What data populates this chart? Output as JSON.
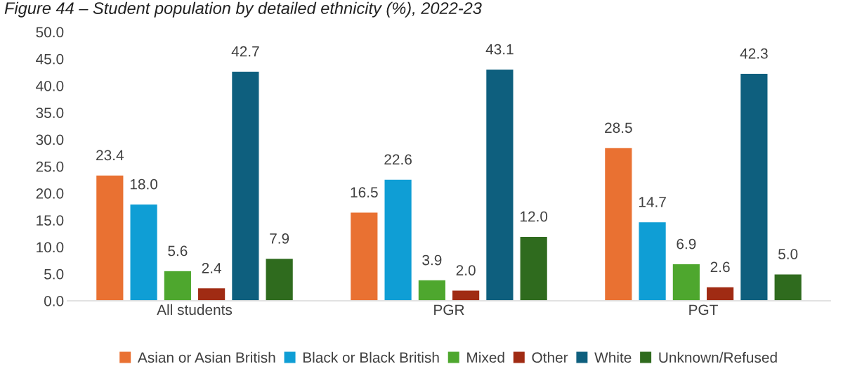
{
  "chart_data": {
    "type": "bar",
    "title": "Figure 44 – Student population by detailed ethnicity (%), 2022-23",
    "categories": [
      "All students",
      "PGR",
      "PGT"
    ],
    "series": [
      {
        "name": "Asian or Asian British",
        "color": "#e97132",
        "values": [
          23.4,
          16.5,
          28.5
        ],
        "value_labels": [
          "23.4",
          "16.5",
          "28.5"
        ]
      },
      {
        "name": "Black or Black British",
        "color": "#0f9ed5",
        "values": [
          18.0,
          22.6,
          14.7
        ],
        "value_labels": [
          "18.0",
          "22.6",
          "14.7"
        ]
      },
      {
        "name": "Mixed",
        "color": "#4ea72e",
        "values": [
          5.6,
          3.9,
          6.9
        ],
        "value_labels": [
          "5.6",
          "3.9",
          "6.9"
        ]
      },
      {
        "name": "Other",
        "color": "#a02b13",
        "values": [
          2.4,
          2.0,
          2.6
        ],
        "value_labels": [
          "2.4",
          "2.0",
          "2.6"
        ]
      },
      {
        "name": "White",
        "color": "#0e5f7e",
        "values": [
          42.7,
          43.1,
          42.3
        ],
        "value_labels": [
          "42.7",
          "43.1",
          "42.3"
        ]
      },
      {
        "name": "Unknown/Refused",
        "color": "#2f6b1e",
        "values": [
          7.9,
          12.0,
          5.0
        ],
        "value_labels": [
          "7.9",
          "12.0",
          "5.0"
        ]
      }
    ],
    "ylim": [
      0,
      50
    ],
    "yticks": [
      {
        "value": 0,
        "label": "0.0"
      },
      {
        "value": 5,
        "label": "5.0"
      },
      {
        "value": 10,
        "label": "10.0"
      },
      {
        "value": 15,
        "label": "15.0"
      },
      {
        "value": 20,
        "label": "20.0"
      },
      {
        "value": 25,
        "label": "25.0"
      },
      {
        "value": 30,
        "label": "30.0"
      },
      {
        "value": 35,
        "label": "35.0"
      },
      {
        "value": 40,
        "label": "40.0"
      },
      {
        "value": 45,
        "label": "45.0"
      },
      {
        "value": 50,
        "label": "50.0"
      }
    ],
    "grid": false,
    "legend": "bottom"
  }
}
